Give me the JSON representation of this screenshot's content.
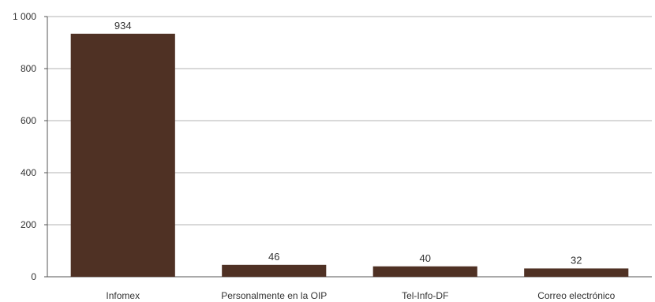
{
  "chart_data": {
    "type": "bar",
    "categories": [
      "Infomex",
      "Personalmente en la OIP",
      "Tel-Info-DF",
      "Correo electrónico"
    ],
    "values": [
      934,
      46,
      40,
      32
    ],
    "data_labels": [
      "934",
      "46",
      "40",
      "32"
    ],
    "ylim": [
      0,
      1000
    ],
    "y_ticks": [
      0,
      200,
      400,
      600,
      800,
      1000
    ],
    "y_tick_labels": [
      "0",
      "200",
      "400",
      "600",
      "800",
      "1 000"
    ],
    "title": "",
    "xlabel": "",
    "ylabel": "",
    "grid": true,
    "legend": "none",
    "bar_color": "#4f3124"
  }
}
